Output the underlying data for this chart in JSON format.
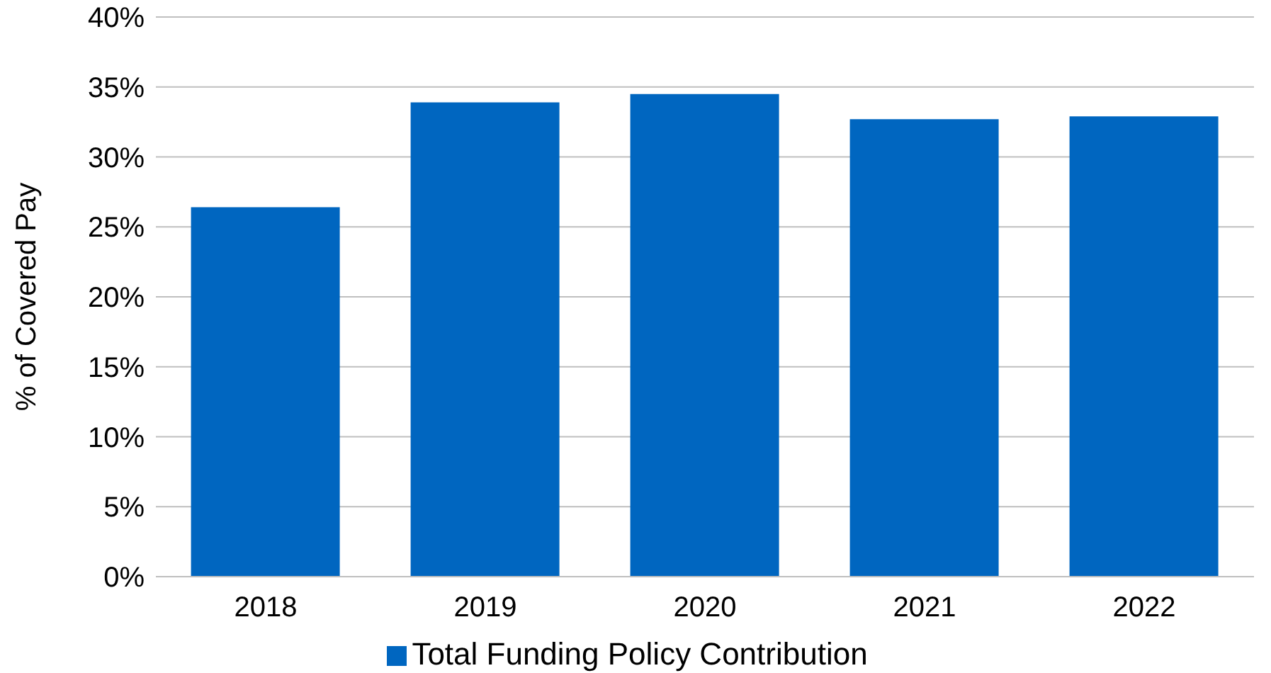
{
  "chart_data": {
    "type": "bar",
    "ylabel": "% of Covered Pay",
    "categories": [
      "2018",
      "2019",
      "2020",
      "2021",
      "2022"
    ],
    "series": [
      {
        "name": "Total Funding Policy Contribution",
        "color": "#0066c0",
        "values": [
          26.4,
          33.9,
          34.5,
          32.7,
          32.9
        ]
      }
    ],
    "ylim": [
      0,
      40
    ],
    "yticks": [
      {
        "value": 0,
        "label": "0%"
      },
      {
        "value": 5,
        "label": "5%"
      },
      {
        "value": 10,
        "label": "10%"
      },
      {
        "value": 15,
        "label": "15%"
      },
      {
        "value": 20,
        "label": "20%"
      },
      {
        "value": 25,
        "label": "25%"
      },
      {
        "value": 30,
        "label": "30%"
      },
      {
        "value": 35,
        "label": "35%"
      },
      {
        "value": 40,
        "label": "40%"
      }
    ],
    "grid": "y",
    "legend": "bottom"
  }
}
